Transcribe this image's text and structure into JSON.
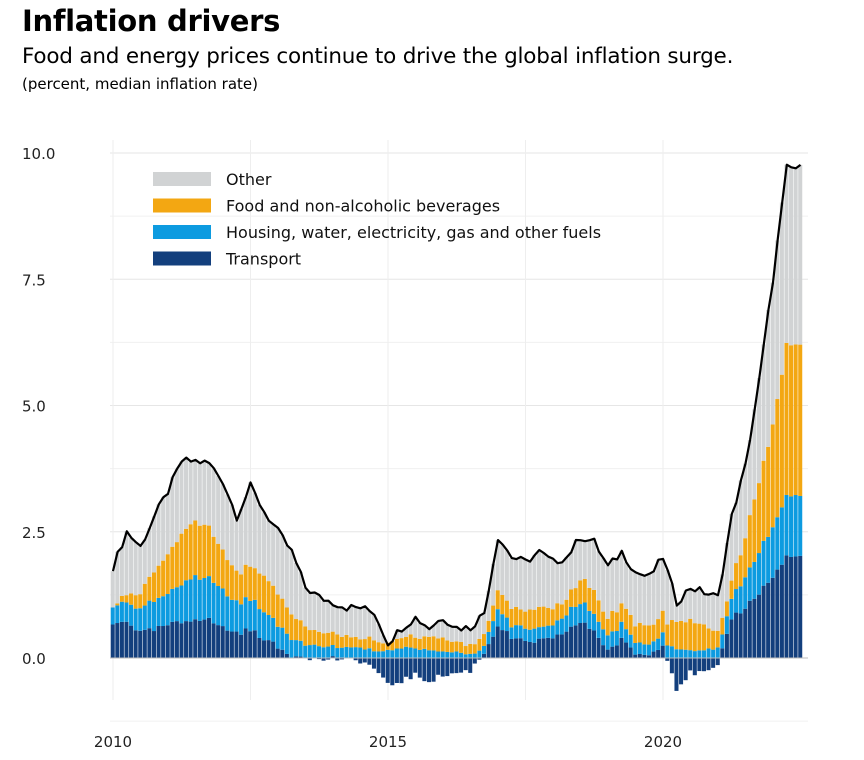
{
  "header": {
    "title": "Inflation drivers",
    "subtitle": "Food and energy prices continue to drive the global inflation surge.",
    "units": "(percent, median inflation rate)"
  },
  "colors": {
    "other": "#d1d3d4",
    "food": "#f3a712",
    "housing": "#0d9be0",
    "transport": "#133f7d",
    "total_line": "#000000",
    "grid": "#e6e6e6"
  },
  "chart_data": {
    "type": "bar",
    "stacked": true,
    "title": "Inflation drivers",
    "subtitle": "Food and energy prices continue to drive the global inflation surge.",
    "ylabel": "(percent, median inflation rate)",
    "xlabel": "",
    "x_range": [
      2009.75,
      2022.5
    ],
    "ylim": [
      -1.0,
      10.2
    ],
    "yticks": [
      0.0,
      2.5,
      5.0,
      7.5,
      10.0
    ],
    "ytick_labels": [
      "0.0",
      "2.5",
      "5.0",
      "7.5",
      "10.0"
    ],
    "xticks": [
      2010,
      2015,
      2020
    ],
    "xtick_labels": [
      "2010",
      "2015",
      "2020"
    ],
    "grid": true,
    "legend": {
      "position": "top-left",
      "entries": [
        "Other",
        "Food and non-alcoholic beverages",
        "Housing, water, electricity, gas and other fuels",
        "Transport"
      ]
    },
    "anchors": {
      "total": [
        [
          2010.0,
          1.8
        ],
        [
          2010.25,
          2.5
        ],
        [
          2010.5,
          2.2
        ],
        [
          2010.75,
          2.8
        ],
        [
          2011.0,
          3.3
        ],
        [
          2011.25,
          3.9
        ],
        [
          2011.5,
          3.9
        ],
        [
          2011.75,
          3.85
        ],
        [
          2012.0,
          3.5
        ],
        [
          2012.25,
          2.8
        ],
        [
          2012.5,
          3.4
        ],
        [
          2012.75,
          2.9
        ],
        [
          2013.0,
          2.5
        ],
        [
          2013.25,
          2.1
        ],
        [
          2013.5,
          1.4
        ],
        [
          2013.75,
          1.2
        ],
        [
          2014.0,
          1.1
        ],
        [
          2014.25,
          1.0
        ],
        [
          2014.5,
          1.0
        ],
        [
          2014.75,
          0.9
        ],
        [
          2015.0,
          0.3
        ],
        [
          2015.25,
          0.6
        ],
        [
          2015.5,
          0.8
        ],
        [
          2015.75,
          0.6
        ],
        [
          2016.0,
          0.8
        ],
        [
          2016.25,
          0.6
        ],
        [
          2016.5,
          0.6
        ],
        [
          2016.75,
          0.9
        ],
        [
          2017.0,
          2.4
        ],
        [
          2017.25,
          2.0
        ],
        [
          2017.5,
          1.9
        ],
        [
          2017.75,
          2.1
        ],
        [
          2018.0,
          1.9
        ],
        [
          2018.25,
          2.0
        ],
        [
          2018.5,
          2.4
        ],
        [
          2018.75,
          2.3
        ],
        [
          2019.0,
          1.8
        ],
        [
          2019.25,
          2.1
        ],
        [
          2019.5,
          1.7
        ],
        [
          2019.75,
          1.6
        ],
        [
          2020.0,
          2.0
        ],
        [
          2020.25,
          1.1
        ],
        [
          2020.5,
          1.4
        ],
        [
          2020.75,
          1.3
        ],
        [
          2021.0,
          1.2
        ],
        [
          2021.25,
          2.8
        ],
        [
          2021.5,
          3.8
        ],
        [
          2021.75,
          5.5
        ],
        [
          2022.0,
          7.5
        ],
        [
          2022.25,
          9.7
        ]
      ],
      "transport": [
        [
          2010.0,
          0.65
        ],
        [
          2010.25,
          0.75
        ],
        [
          2010.5,
          0.5
        ],
        [
          2010.75,
          0.55
        ],
        [
          2011.0,
          0.65
        ],
        [
          2011.25,
          0.7
        ],
        [
          2011.5,
          0.8
        ],
        [
          2011.75,
          0.75
        ],
        [
          2012.0,
          0.6
        ],
        [
          2012.25,
          0.5
        ],
        [
          2012.5,
          0.55
        ],
        [
          2012.75,
          0.4
        ],
        [
          2013.0,
          0.2
        ],
        [
          2013.25,
          0.05
        ],
        [
          2013.5,
          0.05
        ],
        [
          2013.75,
          -0.05
        ],
        [
          2014.0,
          0.0
        ],
        [
          2014.25,
          -0.05
        ],
        [
          2014.5,
          -0.05
        ],
        [
          2014.75,
          -0.2
        ],
        [
          2015.0,
          -0.55
        ],
        [
          2015.25,
          -0.45
        ],
        [
          2015.5,
          -0.35
        ],
        [
          2015.75,
          -0.45
        ],
        [
          2016.0,
          -0.35
        ],
        [
          2016.25,
          -0.3
        ],
        [
          2016.5,
          -0.25
        ],
        [
          2016.75,
          0.1
        ],
        [
          2017.0,
          0.65
        ],
        [
          2017.25,
          0.4
        ],
        [
          2017.5,
          0.3
        ],
        [
          2017.75,
          0.35
        ],
        [
          2018.0,
          0.35
        ],
        [
          2018.25,
          0.55
        ],
        [
          2018.5,
          0.7
        ],
        [
          2018.75,
          0.55
        ],
        [
          2019.0,
          0.15
        ],
        [
          2019.25,
          0.35
        ],
        [
          2019.5,
          0.1
        ],
        [
          2019.75,
          0.05
        ],
        [
          2020.0,
          0.3
        ],
        [
          2020.25,
          -0.6
        ],
        [
          2020.5,
          -0.3
        ],
        [
          2020.75,
          -0.3
        ],
        [
          2021.0,
          -0.2
        ],
        [
          2021.25,
          0.8
        ],
        [
          2021.5,
          1.0
        ],
        [
          2021.75,
          1.3
        ],
        [
          2022.0,
          1.6
        ],
        [
          2022.25,
          2.0
        ]
      ],
      "housing": [
        [
          2010.0,
          0.35
        ],
        [
          2010.25,
          0.4
        ],
        [
          2010.5,
          0.45
        ],
        [
          2010.75,
          0.55
        ],
        [
          2011.0,
          0.6
        ],
        [
          2011.25,
          0.75
        ],
        [
          2011.5,
          0.85
        ],
        [
          2011.75,
          0.8
        ],
        [
          2012.0,
          0.75
        ],
        [
          2012.25,
          0.6
        ],
        [
          2012.5,
          0.6
        ],
        [
          2012.75,
          0.55
        ],
        [
          2013.0,
          0.45
        ],
        [
          2013.25,
          0.35
        ],
        [
          2013.5,
          0.25
        ],
        [
          2013.75,
          0.25
        ],
        [
          2014.0,
          0.2
        ],
        [
          2014.25,
          0.2
        ],
        [
          2014.5,
          0.2
        ],
        [
          2014.75,
          0.15
        ],
        [
          2015.0,
          0.15
        ],
        [
          2015.25,
          0.2
        ],
        [
          2015.5,
          0.2
        ],
        [
          2015.75,
          0.15
        ],
        [
          2016.0,
          0.15
        ],
        [
          2016.25,
          0.1
        ],
        [
          2016.5,
          0.1
        ],
        [
          2016.75,
          0.15
        ],
        [
          2017.0,
          0.35
        ],
        [
          2017.25,
          0.25
        ],
        [
          2017.5,
          0.25
        ],
        [
          2017.75,
          0.25
        ],
        [
          2018.0,
          0.25
        ],
        [
          2018.25,
          0.35
        ],
        [
          2018.5,
          0.4
        ],
        [
          2018.75,
          0.35
        ],
        [
          2019.0,
          0.3
        ],
        [
          2019.25,
          0.3
        ],
        [
          2019.5,
          0.25
        ],
        [
          2019.75,
          0.2
        ],
        [
          2020.0,
          0.25
        ],
        [
          2020.25,
          0.2
        ],
        [
          2020.5,
          0.15
        ],
        [
          2020.75,
          0.15
        ],
        [
          2021.0,
          0.2
        ],
        [
          2021.25,
          0.4
        ],
        [
          2021.5,
          0.6
        ],
        [
          2021.75,
          0.8
        ],
        [
          2022.0,
          1.0
        ],
        [
          2022.25,
          1.2
        ]
      ],
      "food": [
        [
          2010.0,
          0.0
        ],
        [
          2010.25,
          0.15
        ],
        [
          2010.5,
          0.3
        ],
        [
          2010.75,
          0.6
        ],
        [
          2011.0,
          0.8
        ],
        [
          2011.25,
          1.0
        ],
        [
          2011.5,
          1.1
        ],
        [
          2011.75,
          1.0
        ],
        [
          2012.0,
          0.8
        ],
        [
          2012.25,
          0.6
        ],
        [
          2012.5,
          0.65
        ],
        [
          2012.75,
          0.7
        ],
        [
          2013.0,
          0.6
        ],
        [
          2013.25,
          0.5
        ],
        [
          2013.5,
          0.35
        ],
        [
          2013.75,
          0.3
        ],
        [
          2014.0,
          0.25
        ],
        [
          2014.25,
          0.2
        ],
        [
          2014.5,
          0.2
        ],
        [
          2014.75,
          0.2
        ],
        [
          2015.0,
          0.15
        ],
        [
          2015.25,
          0.2
        ],
        [
          2015.5,
          0.25
        ],
        [
          2015.75,
          0.25
        ],
        [
          2016.0,
          0.25
        ],
        [
          2016.25,
          0.2
        ],
        [
          2016.5,
          0.2
        ],
        [
          2016.75,
          0.2
        ],
        [
          2017.0,
          0.35
        ],
        [
          2017.25,
          0.35
        ],
        [
          2017.5,
          0.35
        ],
        [
          2017.75,
          0.4
        ],
        [
          2018.0,
          0.3
        ],
        [
          2018.25,
          0.3
        ],
        [
          2018.5,
          0.45
        ],
        [
          2018.75,
          0.45
        ],
        [
          2019.0,
          0.35
        ],
        [
          2019.25,
          0.4
        ],
        [
          2019.5,
          0.35
        ],
        [
          2019.75,
          0.35
        ],
        [
          2020.0,
          0.4
        ],
        [
          2020.25,
          0.55
        ],
        [
          2020.5,
          0.6
        ],
        [
          2020.75,
          0.5
        ],
        [
          2021.0,
          0.3
        ],
        [
          2021.25,
          0.35
        ],
        [
          2021.5,
          0.8
        ],
        [
          2021.75,
          1.4
        ],
        [
          2022.0,
          2.0
        ],
        [
          2022.25,
          3.0
        ]
      ]
    }
  }
}
